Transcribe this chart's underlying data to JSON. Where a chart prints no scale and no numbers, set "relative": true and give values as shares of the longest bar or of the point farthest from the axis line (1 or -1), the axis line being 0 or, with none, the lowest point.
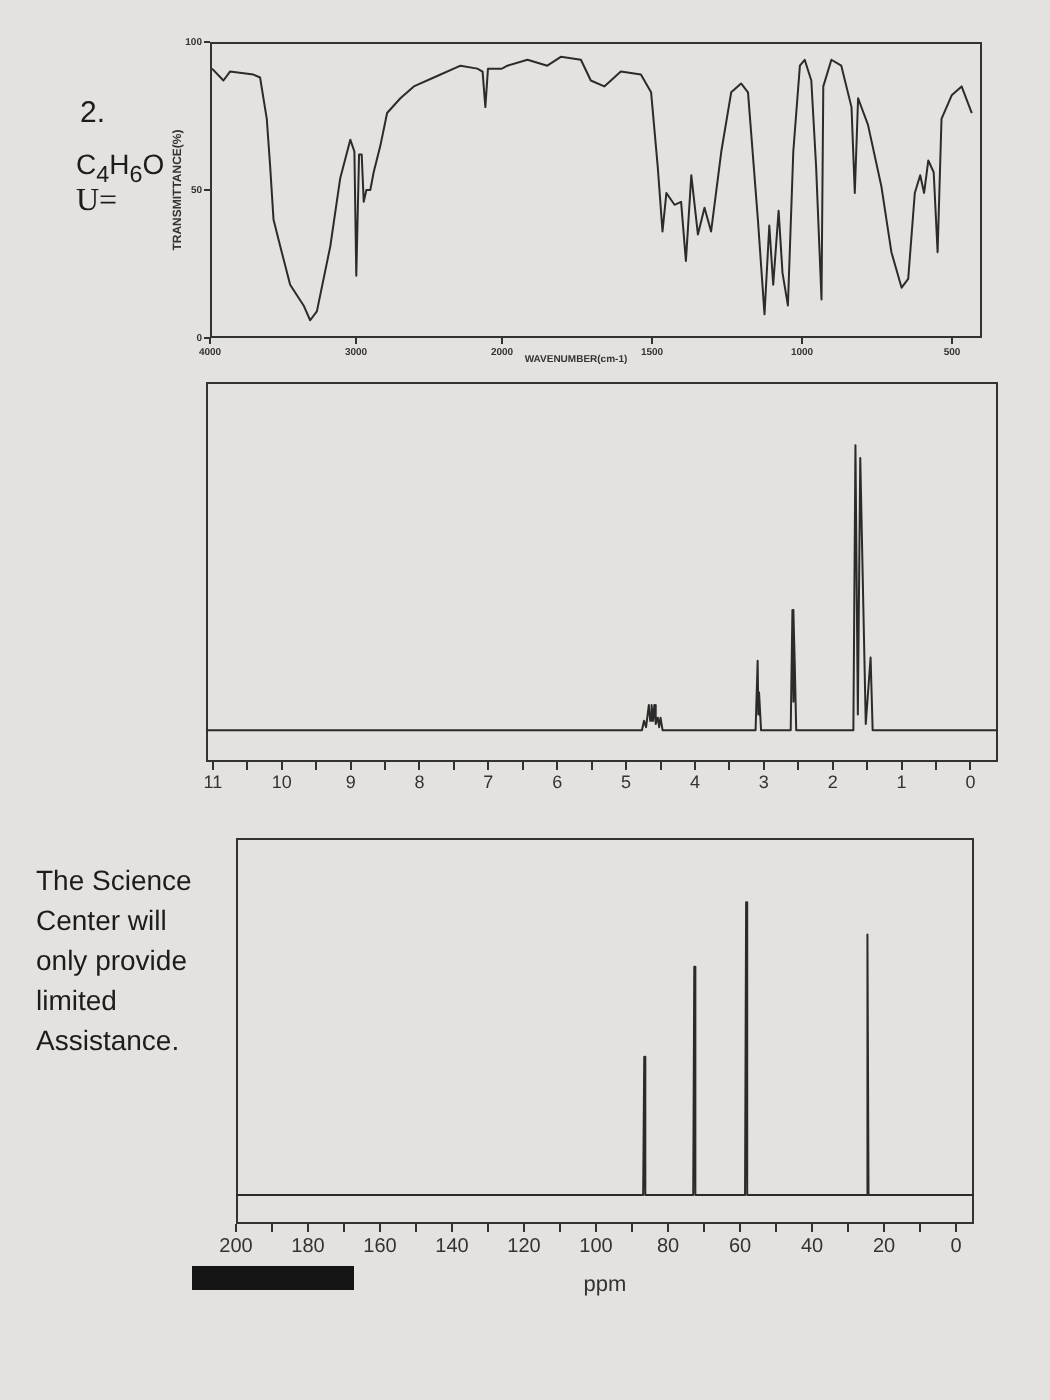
{
  "chart_data": [
    {
      "type": "line",
      "xlabel": "WAVENUMBER(cm-1)",
      "ylabel": "TRANSMITTANCE(%)",
      "annotations": [
        "2.",
        "C$_{4}$H$_{6}$O",
        "U="
      ],
      "x": [
        3986,
        3908,
        3863,
        3703,
        3657,
        3611,
        3588,
        3565,
        3519,
        3451,
        3359,
        3314,
        3268,
        3176,
        3108,
        3039,
        3011,
        2998,
        2979,
        2961,
        2947,
        2929,
        2902,
        2879,
        2833,
        2787,
        2696,
        2604,
        2467,
        2284,
        2169,
        2133,
        2114,
        2096,
        2000
      ],
      "values": [
        91,
        87,
        90,
        89,
        88,
        74,
        58,
        40,
        31,
        18,
        11,
        6,
        9,
        31,
        54,
        67,
        63,
        21,
        62,
        62,
        46,
        50,
        50,
        56,
        65,
        76,
        81,
        85,
        88,
        92,
        91,
        90,
        78,
        91,
        91
      ],
      "color": "#2b2b2b",
      "xlim": [
        4000,
        2000
      ],
      "xticks": [
        4000,
        3000,
        2000
      ],
      "ylim": [
        0,
        100
      ],
      "yticks": [
        0,
        50,
        100
      ],
      "marker": "none"
    },
    {
      "type": "line",
      "tick_labels": "x",
      "x": [
        2000,
        1982,
        1915,
        1849,
        1804,
        1737,
        1704,
        1659,
        1604,
        1537,
        1503,
        1481,
        1465,
        1452,
        1425,
        1403,
        1387,
        1369,
        1347,
        1325,
        1303,
        1269,
        1236,
        1203,
        1180,
        1147,
        1125,
        1109,
        1096,
        1078,
        1065,
        1047,
        1029,
        1007,
        991,
        969,
        953,
        935,
        929,
        902,
        869,
        835,
        824,
        813,
        780,
        735,
        702,
        668,
        646,
        624,
        606,
        593,
        579,
        561,
        548,
        535,
        501,
        468,
        434
      ],
      "values": [
        91,
        92,
        94,
        92,
        95,
        94,
        87,
        85,
        90,
        89,
        83,
        58,
        36,
        49,
        45,
        46,
        26,
        55,
        35,
        44,
        36,
        63,
        83,
        86,
        83,
        40,
        8,
        38,
        18,
        43,
        22,
        11,
        63,
        92,
        94,
        87,
        58,
        13,
        85,
        94,
        92,
        78,
        49,
        81,
        72,
        51,
        29,
        17,
        20,
        49,
        55,
        49,
        60,
        56,
        29,
        74,
        82,
        85,
        76
      ],
      "color": "#2b2b2b",
      "xlim": [
        2000,
        400
      ],
      "xticks": [
        1500,
        1000,
        500
      ],
      "ylim": [
        0,
        100
      ],
      "marker": "none"
    },
    {
      "type": "line",
      "relative": true,
      "x": [
        11.1,
        4.77,
        4.74,
        4.71,
        4.67,
        4.65,
        4.63,
        4.61,
        4.59,
        4.57,
        4.54,
        4.52,
        4.5,
        4.47,
        3.12,
        3.09,
        3.08,
        3.07,
        3.04,
        2.61,
        2.585,
        2.575,
        2.565,
        2.55,
        2.53,
        1.7,
        1.67,
        1.635,
        1.6,
        1.52,
        1.45,
        1.42,
        -0.4
      ],
      "values": [
        0.1,
        0.1,
        0.13,
        0.11,
        0.18,
        0.13,
        0.18,
        0.13,
        0.18,
        0.12,
        0.14,
        0.11,
        0.14,
        0.1,
        0.1,
        0.32,
        0.15,
        0.22,
        0.1,
        0.1,
        0.48,
        0.19,
        0.47,
        0.3,
        0.1,
        0.1,
        1,
        0.15,
        0.96,
        0.12,
        0.33,
        0.1,
        0.1
      ],
      "color": "#2b2b2b",
      "xlim": [
        11.1,
        -0.4
      ],
      "xticks": [
        11,
        {
          "value": 10.5,
          "label": null
        },
        10,
        {
          "value": 9.5,
          "label": null
        },
        9,
        {
          "value": 8.5,
          "label": null
        },
        8,
        {
          "value": 7.5,
          "label": null
        },
        7,
        {
          "value": 6.5,
          "label": null
        },
        6,
        {
          "value": 5.5,
          "label": null
        },
        5,
        {
          "value": 4.5,
          "label": null
        },
        4,
        {
          "value": 3.5,
          "label": null
        },
        3,
        {
          "value": 2.5,
          "label": null
        },
        2,
        {
          "value": 1.5,
          "label": null
        },
        1,
        {
          "value": 0.5,
          "label": null
        },
        0
      ],
      "marker": "none"
    },
    {
      "type": "line",
      "relative": true,
      "xlabel": "ppm",
      "annotations": [
        "The Science Center will only provide limited Assistance."
      ],
      "x": [
        200,
        86.9,
        86.6,
        86.3,
        73,
        72.7,
        72.4,
        58.6,
        58.3,
        58,
        24.9,
        24.6,
        24.3,
        -5
      ],
      "values": [
        0.09,
        0.09,
        0.52,
        0.09,
        0.09,
        0.8,
        0.09,
        0.09,
        1,
        0.09,
        0.09,
        0.9,
        0.09,
        0.09
      ],
      "color": "#2b2b2b",
      "xlim": [
        200,
        -5
      ],
      "xticks": [
        200,
        {
          "value": 190,
          "label": null
        },
        180,
        {
          "value": 170,
          "label": null
        },
        160,
        {
          "value": 150,
          "label": null
        },
        140,
        {
          "value": 130,
          "label": null
        },
        120,
        {
          "value": 110,
          "label": null
        },
        100,
        {
          "value": 90,
          "label": null
        },
        80,
        {
          "value": 70,
          "label": null
        },
        60,
        {
          "value": 50,
          "label": null
        },
        40,
        {
          "value": 30,
          "label": null
        },
        20,
        {
          "value": 10,
          "label": null
        },
        0
      ],
      "marker": "none"
    }
  ]
}
